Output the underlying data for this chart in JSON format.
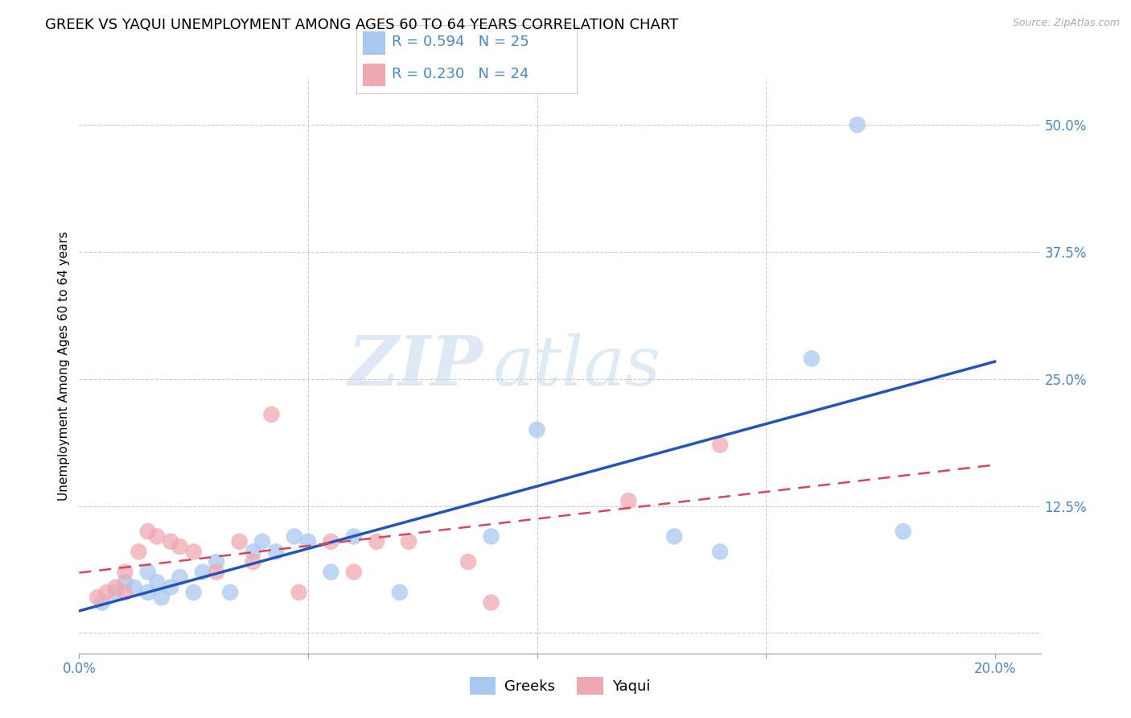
{
  "title": "GREEK VS YAQUI UNEMPLOYMENT AMONG AGES 60 TO 64 YEARS CORRELATION CHART",
  "source": "Source: ZipAtlas.com",
  "ylabel": "Unemployment Among Ages 60 to 64 years",
  "xlim": [
    0.0,
    0.21
  ],
  "ylim": [
    -0.02,
    0.545
  ],
  "background_color": "#ffffff",
  "grid_color": "#cccccc",
  "watermark_zip": "ZIP",
  "watermark_atlas": "atlas",
  "greeks_color": "#a8c8f0",
  "yaqui_color": "#f0a8b0",
  "greeks_line_color": "#2255bb",
  "yaqui_line_color": "#dd4455",
  "tick_color": "#4488cc",
  "title_fontsize": 13,
  "label_fontsize": 11,
  "tick_fontsize": 12,
  "legend_fontsize": 13,
  "greeks_x": [
    0.005,
    0.008,
    0.01,
    0.012,
    0.015,
    0.015,
    0.017,
    0.018,
    0.02,
    0.022,
    0.025,
    0.027,
    0.03,
    0.033,
    0.038,
    0.04,
    0.043,
    0.047,
    0.05,
    0.055,
    0.06,
    0.07,
    0.09,
    0.1,
    0.13,
    0.14,
    0.16,
    0.17,
    0.18
  ],
  "greeks_y": [
    0.03,
    0.04,
    0.05,
    0.045,
    0.04,
    0.06,
    0.05,
    0.035,
    0.045,
    0.055,
    0.04,
    0.06,
    0.07,
    0.04,
    0.08,
    0.09,
    0.08,
    0.095,
    0.09,
    0.06,
    0.095,
    0.04,
    0.095,
    0.2,
    0.095,
    0.08,
    0.27,
    0.5,
    0.1
  ],
  "yaqui_x": [
    0.004,
    0.006,
    0.008,
    0.01,
    0.01,
    0.013,
    0.015,
    0.017,
    0.02,
    0.022,
    0.025,
    0.03,
    0.035,
    0.038,
    0.042,
    0.048,
    0.055,
    0.06,
    0.065,
    0.072,
    0.085,
    0.09,
    0.12,
    0.14
  ],
  "yaqui_y": [
    0.035,
    0.04,
    0.045,
    0.04,
    0.06,
    0.08,
    0.1,
    0.095,
    0.09,
    0.085,
    0.08,
    0.06,
    0.09,
    0.07,
    0.215,
    0.04,
    0.09,
    0.06,
    0.09,
    0.09,
    0.07,
    0.03,
    0.13,
    0.185
  ]
}
